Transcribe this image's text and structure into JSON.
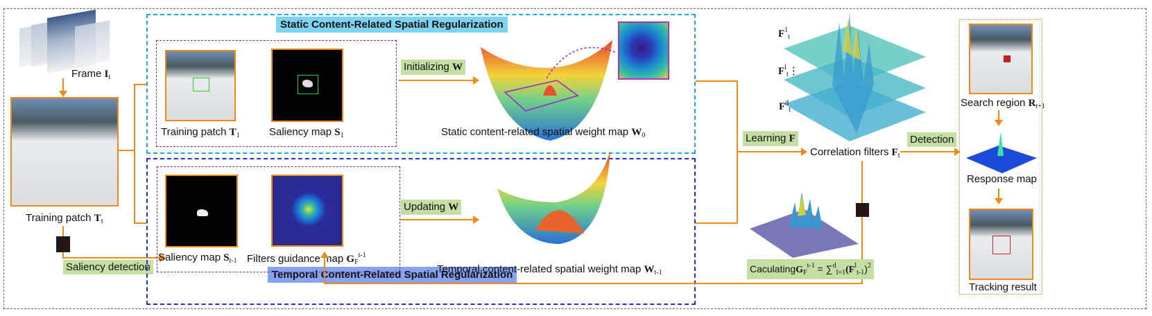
{
  "colors": {
    "accent": "#f08a14",
    "static_box": "#1ea7e1",
    "temporal_box": "#1f2fe0",
    "label_bg": "#c4dea3",
    "static_title_bg": "#7dd3f0",
    "temporal_title_bg": "#86a3f2",
    "inner_box": "#7b2d8e"
  },
  "left": {
    "frame_label": "Frame ",
    "frame_sym": "I",
    "frame_sub": "t",
    "patch_label": "Training patch ",
    "patch_sym": "T",
    "patch_sub": "t",
    "saliency_detection": "Saliency detection"
  },
  "static": {
    "title": "Static Content-Related Spatial Regularization",
    "patch_label": "Training patch ",
    "patch_sym": "T",
    "patch_sub": "1",
    "saliency_label": "Saliency map ",
    "saliency_sym": "S",
    "saliency_sub": "1",
    "init_label": "Initializing ",
    "init_sym": "W",
    "map_label": "Static content-related spatial weight map ",
    "map_sym": "W",
    "map_sub": "0"
  },
  "temporal": {
    "title": "Temporal Content-Related Spatial Regularization",
    "saliency_label": "Saliency map ",
    "saliency_sym": "S",
    "saliency_sub": "t-1",
    "guide_label": "Filters guidance map ",
    "guide_sym": "G",
    "guide_sub": "F",
    "guide_sup": "t-1",
    "update_label": "Updating ",
    "update_sym": "W",
    "map_label": "Temporal content-related spatial weight map ",
    "map_sym": "W",
    "map_sub": "t-1"
  },
  "middle": {
    "learning_label": "Learning ",
    "learning_sym": "F",
    "filters_label": "Correlation filters ",
    "filters_sym": "F",
    "filters_sub": "t",
    "layer_labels": [
      {
        "sym": "F",
        "sup": "1",
        "sub": "t"
      },
      {
        "sym": "F",
        "sup": "l",
        "sub": "t"
      },
      {
        "sym": "F",
        "sup": "d",
        "sub": "t"
      }
    ],
    "vdots": "⋮",
    "calc_label": "Caculating",
    "calc_formula": " = ∑",
    "calc_range_sup": "d",
    "calc_range_sub": "l=1",
    "calc_term": "(F",
    "calc_term_sup": "l",
    "calc_term_sub": "t-1",
    "calc_close": ")",
    "calc_power": "2",
    "detection_label": "Detection"
  },
  "right": {
    "search_label": "Search region ",
    "search_sym": "R",
    "search_sub": "t+1",
    "response_label": "Response map",
    "tracking_label": "Tracking result"
  }
}
